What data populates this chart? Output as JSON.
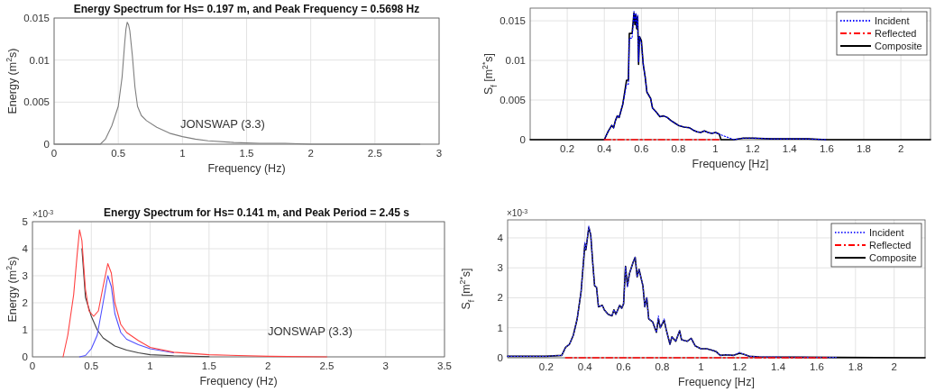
{
  "chart_data": [
    {
      "type": "line",
      "title": "Energy Spectrum for Hs= 0.197 m, and Peak Frequency = 0.5698 Hz",
      "xlabel": "Frequency (Hz)",
      "ylabel": "Energy (m$^{2}$s)",
      "annotations": [
        "JONSWAP (3.3)"
      ],
      "xlim": [
        0,
        3
      ],
      "ylim": [
        0,
        0.015
      ],
      "xticks": [
        0,
        0.5,
        1,
        1.5,
        2,
        2.5,
        3
      ],
      "yticks": [
        0,
        0.005,
        0.01,
        0.015
      ],
      "grid": true,
      "series": [
        {
          "color": "#7f7f7f",
          "line_style": "solid",
          "x": [
            0,
            0.3,
            0.36,
            0.4,
            0.45,
            0.5,
            0.53,
            0.55,
            0.56,
            0.57,
            0.58,
            0.59,
            0.61,
            0.63,
            0.65,
            0.68,
            0.72,
            0.8,
            0.9,
            1.0,
            1.1,
            1.2,
            1.4,
            1.6,
            1.8,
            2.0,
            2.4,
            2.85
          ],
          "values": [
            0,
            0,
            0,
            0.0006,
            0.0022,
            0.0045,
            0.008,
            0.012,
            0.0137,
            0.0145,
            0.0142,
            0.0135,
            0.0105,
            0.0068,
            0.0045,
            0.0034,
            0.0028,
            0.002,
            0.0013,
            0.0009,
            0.0006,
            0.0004,
            0.0002,
            0.0001,
            0.0001,
            0,
            0,
            0
          ]
        }
      ]
    },
    {
      "type": "line",
      "xlabel": "Frequency [Hz]",
      "ylabel": "S$_{f}$ [m$^{2*}$s]",
      "xlim": [
        0,
        2.16
      ],
      "ylim": [
        0,
        0.0166
      ],
      "xticks": [
        0.2,
        0.4,
        0.6,
        0.8,
        1,
        1.2,
        1.4,
        1.6,
        1.8,
        2
      ],
      "yticks": [
        0,
        0.005,
        0.01,
        0.015
      ],
      "grid": true,
      "legend": "top right",
      "series": [
        {
          "name": "Incident",
          "color": "#0000ff",
          "line_style": "dotted",
          "x": [
            0.4,
            0.42,
            0.44,
            0.45,
            0.46,
            0.47,
            0.48,
            0.5,
            0.52,
            0.53,
            0.535,
            0.55,
            0.56,
            0.565,
            0.57,
            0.575,
            0.58,
            0.585,
            0.59,
            0.6,
            0.61,
            0.62,
            0.63,
            0.65,
            0.66,
            0.68,
            0.7,
            0.72,
            0.74,
            0.76,
            0.78,
            0.8,
            0.83,
            0.86,
            0.88,
            0.9,
            0.92,
            0.94,
            0.96,
            0.98,
            1.0,
            1.02,
            1.1,
            1.15,
            1.2,
            1.3,
            1.5,
            1.6
          ],
          "values": [
            0,
            0.001,
            0.0018,
            0.0015,
            0.0024,
            0.003,
            0.0028,
            0.0045,
            0.007,
            0.007,
            0.0128,
            0.0128,
            0.0162,
            0.0148,
            0.016,
            0.0142,
            0.0157,
            0.0098,
            0.013,
            0.0122,
            0.0095,
            0.008,
            0.006,
            0.0052,
            0.004,
            0.0035,
            0.0029,
            0.003,
            0.0028,
            0.0024,
            0.0021,
            0.0018,
            0.0016,
            0.0015,
            0.0012,
            0.001,
            0.0009,
            0.0011,
            0.0009,
            0.0008,
            0.0009,
            0.0007,
            0,
            0.0002,
            0.0002,
            0.0001,
            0.0001,
            0
          ]
        },
        {
          "name": "Reflected",
          "color": "#ff0000",
          "line_style": "dashed",
          "x": [
            0.4,
            1.02
          ],
          "values": [
            0,
            0
          ]
        },
        {
          "name": "Composite",
          "color": "#000000",
          "line_style": "solid",
          "x": [
            0,
            0.4,
            0.42,
            0.44,
            0.45,
            0.46,
            0.47,
            0.48,
            0.5,
            0.52,
            0.53,
            0.535,
            0.55,
            0.56,
            0.565,
            0.57,
            0.575,
            0.58,
            0.585,
            0.59,
            0.6,
            0.61,
            0.62,
            0.63,
            0.65,
            0.66,
            0.68,
            0.7,
            0.72,
            0.74,
            0.76,
            0.78,
            0.8,
            0.83,
            0.86,
            0.88,
            0.9,
            0.92,
            0.94,
            0.96,
            0.98,
            1.0,
            1.02,
            1.03,
            1.1,
            1.15,
            1.2,
            1.3,
            1.5,
            1.6,
            2.16
          ],
          "values": [
            0,
            0,
            0.001,
            0.0018,
            0.0015,
            0.0024,
            0.003,
            0.0028,
            0.0045,
            0.0075,
            0.0075,
            0.0134,
            0.0134,
            0.016,
            0.0145,
            0.0158,
            0.014,
            0.0155,
            0.0095,
            0.013,
            0.0125,
            0.0095,
            0.008,
            0.006,
            0.0052,
            0.004,
            0.0035,
            0.0029,
            0.003,
            0.0028,
            0.0024,
            0.0021,
            0.0018,
            0.0016,
            0.0015,
            0.0012,
            0.001,
            0.0009,
            0.0011,
            0.0009,
            0.0008,
            0.0009,
            0.0007,
            0,
            0,
            0.0002,
            0.0002,
            0.0001,
            0.0001,
            0,
            0
          ]
        }
      ]
    },
    {
      "type": "line",
      "title": "Energy Spectrum for Hs= 0.141 m, and Peak Period = 2.45 s",
      "xlabel": "Frequency (Hz)",
      "ylabel": "Energy (m$^{2}$s)",
      "annotations": [
        "×10$^{-3}$",
        "JONSWAP (3.3)"
      ],
      "xlim": [
        0,
        3.5
      ],
      "ylim": [
        0,
        5
      ],
      "xticks": [
        0,
        0.5,
        1,
        1.5,
        2,
        2.5,
        3,
        3.5
      ],
      "yticks": [
        0,
        1,
        2,
        3,
        4,
        5
      ],
      "grid": true,
      "series": [
        {
          "color": "#ff4040",
          "line_style": "solid",
          "x": [
            0.26,
            0.3,
            0.35,
            0.38,
            0.4,
            0.42,
            0.45,
            0.48,
            0.52,
            0.56,
            0.6,
            0.64,
            0.67,
            0.7,
            0.75,
            0.8,
            0.9,
            1.0,
            1.2,
            1.5,
            2,
            2.5
          ],
          "values": [
            0,
            0.8,
            2.3,
            3.8,
            4.7,
            4.3,
            2.5,
            1.7,
            1.5,
            1.7,
            2.6,
            3.45,
            3.1,
            2.0,
            1.2,
            0.9,
            0.6,
            0.35,
            0.17,
            0.08,
            0.02,
            0
          ]
        },
        {
          "color": "#5050ff",
          "line_style": "solid",
          "x": [
            0.4,
            0.45,
            0.5,
            0.55,
            0.6,
            0.64,
            0.67,
            0.7,
            0.75,
            0.8,
            0.9,
            1.0,
            1.2
          ],
          "values": [
            0,
            0.05,
            0.3,
            0.8,
            2.0,
            3.0,
            2.6,
            1.6,
            0.9,
            0.65,
            0.45,
            0.3,
            0.15
          ]
        },
        {
          "color": "#404040",
          "line_style": "solid",
          "x": [
            0.42,
            0.45,
            0.5,
            0.55,
            0.6,
            0.7,
            0.8,
            0.9,
            1.0,
            1.2,
            1.5
          ],
          "values": [
            4.0,
            2.2,
            1.5,
            1.0,
            0.7,
            0.4,
            0.25,
            0.15,
            0.08,
            0.04,
            0.01
          ]
        }
      ]
    },
    {
      "type": "line",
      "xlabel": "Frequency [Hz]",
      "ylabel": "S$_{f}$ [m$^{2*}$s]",
      "annotations": [
        "×10$^{-3}$"
      ],
      "xlim": [
        0,
        2.16
      ],
      "ylim": [
        0,
        4.6
      ],
      "xticks": [
        0.2,
        0.4,
        0.6,
        0.8,
        1,
        1.2,
        1.4,
        1.6,
        1.8,
        2
      ],
      "yticks": [
        0,
        1,
        2,
        3,
        4
      ],
      "grid": true,
      "legend": "top right",
      "series": [
        {
          "name": "Incident",
          "color": "#3333ff",
          "line_style": "dotted",
          "x": [
            0,
            0.2,
            0.28,
            0.3,
            0.32,
            0.34,
            0.36,
            0.38,
            0.39,
            0.4,
            0.405,
            0.42,
            0.43,
            0.44,
            0.45,
            0.46,
            0.47,
            0.49,
            0.5,
            0.52,
            0.54,
            0.55,
            0.56,
            0.58,
            0.59,
            0.6,
            0.61,
            0.62,
            0.63,
            0.65,
            0.66,
            0.67,
            0.68,
            0.7,
            0.71,
            0.72,
            0.73,
            0.75,
            0.77,
            0.78,
            0.79,
            0.81,
            0.82,
            0.84,
            0.85,
            0.87,
            0.89,
            0.9,
            0.93,
            0.95,
            0.97,
            1.0,
            1.03,
            1.06,
            1.08,
            1.1,
            1.13,
            1.17,
            1.2,
            1.22,
            1.25,
            1.3,
            1.5,
            1.7
          ],
          "values": [
            0.05,
            0.05,
            0.08,
            0.35,
            0.45,
            0.75,
            1.3,
            2.2,
            3.0,
            3.85,
            3.6,
            4.4,
            4.1,
            3.2,
            2.4,
            2.35,
            1.7,
            1.75,
            1.6,
            1.45,
            1.4,
            1.6,
            1.45,
            1.75,
            1.65,
            1.8,
            3.05,
            2.35,
            2.8,
            3.2,
            3.35,
            2.7,
            2.95,
            2.4,
            1.7,
            2.0,
            1.3,
            1.2,
            0.85,
            1.4,
            1.0,
            1.3,
            0.95,
            0.45,
            0.7,
            0.55,
            0.9,
            0.6,
            0.55,
            0.65,
            0.4,
            0.3,
            0.3,
            0.25,
            0.2,
            0.08,
            0.1,
            0.08,
            0.18,
            0.12,
            0.05,
            0.03,
            0.02,
            0.01
          ]
        },
        {
          "name": "Reflected",
          "color": "#ff0000",
          "line_style": "dashed",
          "x": [
            0.3,
            1.65
          ],
          "values": [
            0,
            0
          ]
        },
        {
          "name": "Composite",
          "color": "#000000",
          "line_style": "solid",
          "x": [
            0,
            0.2,
            0.28,
            0.3,
            0.32,
            0.34,
            0.36,
            0.38,
            0.39,
            0.4,
            0.405,
            0.42,
            0.43,
            0.44,
            0.45,
            0.46,
            0.47,
            0.49,
            0.5,
            0.52,
            0.54,
            0.55,
            0.56,
            0.58,
            0.59,
            0.6,
            0.61,
            0.62,
            0.63,
            0.65,
            0.66,
            0.67,
            0.68,
            0.7,
            0.71,
            0.72,
            0.73,
            0.75,
            0.77,
            0.78,
            0.79,
            0.81,
            0.82,
            0.84,
            0.85,
            0.87,
            0.89,
            0.9,
            0.93,
            0.95,
            0.97,
            1.0,
            1.03,
            1.06,
            1.08,
            1.1,
            1.13,
            1.17,
            1.2,
            1.22,
            1.25,
            1.3,
            1.5,
            1.7,
            2.16
          ],
          "values": [
            0.05,
            0.05,
            0.08,
            0.35,
            0.45,
            0.75,
            1.3,
            2.2,
            3.0,
            3.8,
            3.6,
            4.35,
            4.1,
            3.2,
            2.4,
            2.35,
            1.7,
            1.75,
            1.6,
            1.45,
            1.4,
            1.6,
            1.45,
            1.75,
            1.65,
            1.8,
            3.05,
            2.4,
            2.8,
            3.2,
            3.35,
            2.7,
            2.95,
            2.4,
            1.7,
            2.0,
            1.3,
            1.2,
            0.85,
            1.3,
            1.0,
            1.25,
            0.95,
            0.45,
            0.7,
            0.55,
            0.9,
            0.6,
            0.55,
            0.65,
            0.4,
            0.3,
            0.3,
            0.25,
            0.2,
            0.08,
            0.1,
            0.08,
            0.15,
            0.12,
            0.05,
            0.03,
            0.02,
            0.01,
            0
          ]
        }
      ]
    }
  ]
}
